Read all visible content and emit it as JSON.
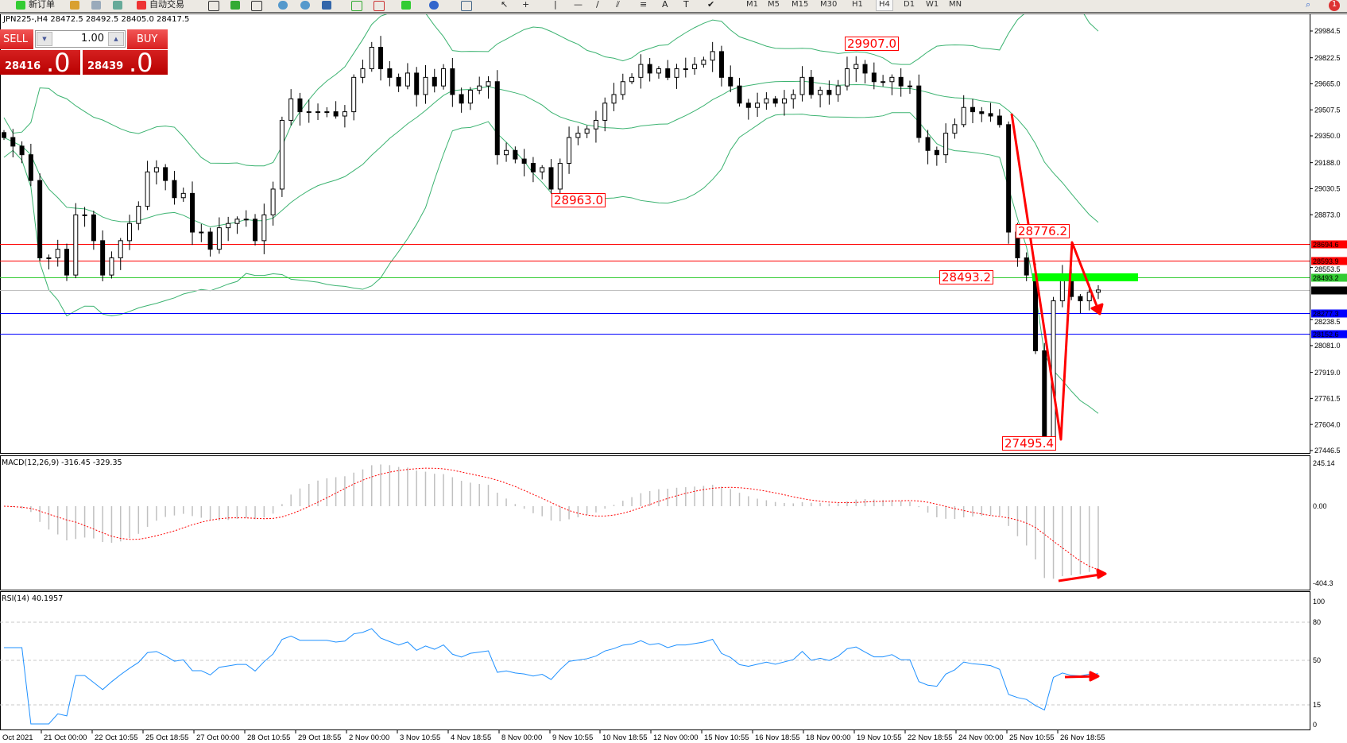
{
  "toolbar": {
    "new_order": "新订单",
    "auto_trading": "自动交易",
    "timeframes": [
      "M1",
      "M5",
      "M15",
      "M30",
      "H1",
      "H4",
      "D1",
      "W1",
      "MN"
    ],
    "selected_timeframe": "H4",
    "notification_count": "1"
  },
  "symbol_info": "JPN225-,H4  28472.5 28492.5 28405.0 28417.5",
  "trade_panel": {
    "sell_label": "SELL",
    "buy_label": "BUY",
    "volume": "1.00",
    "sell_price_main": "28416",
    "sell_price_big": ".0",
    "buy_price_main": "28439",
    "buy_price_big": ".0"
  },
  "price_axis": [
    "29984.5",
    "29822.5",
    "29665.0",
    "29507.5",
    "29350.0",
    "29188.0",
    "29030.5",
    "28873.0",
    "28553.5",
    "28238.5",
    "28081.0",
    "27919.0",
    "27761.5",
    "27604.0",
    "27446.5"
  ],
  "price_lines": [
    {
      "value": "28694.6",
      "color": "#ff0000"
    },
    {
      "value": "28593.9",
      "color": "#ff0000"
    },
    {
      "value": "28493.2",
      "color": "#33cc33"
    },
    {
      "value": "28417.5",
      "color": "#000000",
      "line": "#c0c0c0"
    },
    {
      "value": "28277.3",
      "color": "#0000ff"
    },
    {
      "value": "28152.6",
      "color": "#0000ff"
    }
  ],
  "annotations": [
    "29907.0",
    "28963.0",
    "28776.2",
    "28493.2",
    "27495.4"
  ],
  "macd": {
    "label": "MACD(12,26,9) -316.45 -329.35",
    "axis": [
      "245.14",
      "0.00",
      "-404.3"
    ]
  },
  "rsi": {
    "label": "RSI(14) 40.1957",
    "axis": [
      "100",
      "80",
      "50",
      "15",
      "0"
    ]
  },
  "time_axis": [
    "Oct 2021",
    "21 Oct 00:00",
    "22 Oct 10:55",
    "25 Oct 18:55",
    "27 Oct 00:00",
    "28 Oct 10:55",
    "29 Oct 18:55",
    "2 Nov 00:00",
    "3 Nov 10:55",
    "4 Nov 18:55",
    "8 Nov 00:00",
    "9 Nov 10:55",
    "10 Nov 18:55",
    "12 Nov 00:00",
    "15 Nov 10:55",
    "16 Nov 18:55",
    "18 Nov 00:00",
    "19 Nov 10:55",
    "22 Nov 18:55",
    "24 Nov 00:00",
    "25 Nov 10:55",
    "26 Nov 18:55"
  ],
  "colors": {
    "bands": "#3cb371",
    "macd_signal": "#ff0000",
    "macd_hist": "#c0c0c0",
    "rsi": "#1e90ff",
    "arrows": "#ff0000",
    "zone": "#00ff00"
  },
  "chart_data": {
    "type": "candlestick",
    "symbol": "JPN225-",
    "timeframe": "H4",
    "indicators": [
      "Bollinger Bands",
      "MACD(12,26,9)",
      "RSI(14)"
    ],
    "ylim": [
      27446.5,
      29984.5
    ],
    "closes": [
      29340,
      29288,
      29236,
      29080,
      28612,
      28612,
      28664,
      28508,
      28872,
      28872,
      28716,
      28508,
      28612,
      28716,
      28820,
      28924,
      29132,
      29158,
      29080,
      28976,
      29002,
      28768,
      28768,
      28664,
      28794,
      28820,
      28846,
      28846,
      28716,
      28872,
      29028,
      29444,
      29574,
      29496,
      29496,
      29496,
      29496,
      29470,
      29496,
      29704,
      29756,
      29886,
      29756,
      29704,
      29652,
      29730,
      29600,
      29704,
      29652,
      29756,
      29600,
      29548,
      29626,
      29652,
      29678,
      29236,
      29262,
      29210,
      29184,
      29132,
      29158,
      29028,
      29184,
      29340,
      29366,
      29392,
      29444,
      29548,
      29600,
      29678,
      29704,
      29782,
      29730,
      29756,
      29704,
      29756,
      29756,
      29782,
      29808,
      29860,
      29704,
      29652,
      29548,
      29522,
      29548,
      29574,
      29548,
      29574,
      29600,
      29704,
      29600,
      29626,
      29600,
      29652,
      29756,
      29782,
      29730,
      29678,
      29678,
      29704,
      29652,
      29652,
      29340,
      29262,
      29236,
      29366,
      29418,
      29522,
      29496,
      29485,
      29470,
      29418,
      28768,
      28612,
      28508,
      28050,
      27520,
      28352,
      28508,
      28378,
      28352,
      28404,
      28417.5
    ]
  }
}
